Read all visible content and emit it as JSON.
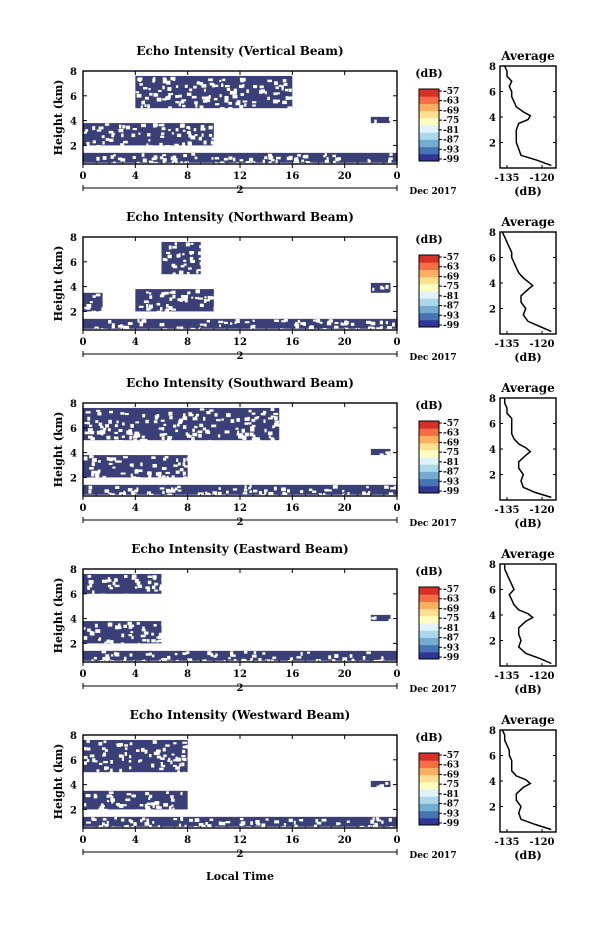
{
  "figure": {
    "x_label": "Local Time",
    "date_label": "Dec 2017",
    "units_label": "(dB)"
  },
  "colors": {
    "echo_fill": "#3a3f78",
    "colorbar": [
      "#313695",
      "#4575b4",
      "#74add1",
      "#abd9e9",
      "#e0f3f8",
      "#ffffbf",
      "#fee090",
      "#fdae61",
      "#f46d43",
      "#d73027"
    ]
  },
  "chart_data": [
    {
      "type": "heatmap",
      "title": "Echo Intensity (Vertical Beam)",
      "ylabel": "Height (km)",
      "xlim": [
        0,
        24
      ],
      "ylim": [
        0.5,
        8
      ],
      "x_ticks": [
        "0",
        "4",
        "8",
        "12",
        "16",
        "20",
        "0"
      ],
      "y_ticks": [
        "2",
        "4",
        "6",
        "8"
      ],
      "day_label": "2",
      "colorbar_ticks": [
        "-57",
        "-63",
        "-69",
        "-75",
        "-81",
        "-87",
        "-93",
        "-99"
      ],
      "echo_regions_hours_km": [
        {
          "x0": 0,
          "x1": 24,
          "y0": 0.6,
          "y1": 1.4
        },
        {
          "x0": 0,
          "x1": 10,
          "y0": 2.0,
          "y1": 3.8
        },
        {
          "x0": 4,
          "x1": 16,
          "y0": 5.0,
          "y1": 7.6
        },
        {
          "x0": 22,
          "x1": 23.5,
          "y0": 3.8,
          "y1": 4.3
        }
      ],
      "average_profile": {
        "title": "Average",
        "xlabel": "(dB)",
        "x_ticks": [
          "-135",
          "-120"
        ],
        "xlim": [
          -138,
          -114
        ],
        "ylim": [
          0,
          8
        ],
        "y_ticks": [
          "2",
          "4",
          "6",
          "8"
        ],
        "height_km": [
          0.2,
          0.6,
          1.0,
          1.5,
          2.0,
          2.5,
          3.0,
          3.5,
          3.8,
          4.1,
          4.4,
          4.8,
          5.2,
          5.6,
          6.0,
          6.4,
          6.8,
          7.2,
          7.6,
          8.0
        ],
        "value_db": [
          -116,
          -122,
          -129,
          -130,
          -131,
          -131,
          -131,
          -130,
          -126,
          -125,
          -128,
          -131,
          -132,
          -133,
          -133,
          -134,
          -133,
          -135,
          -135,
          -136
        ]
      }
    },
    {
      "type": "heatmap",
      "title": "Echo Intensity (Northward Beam)",
      "ylabel": "Height (km)",
      "xlim": [
        0,
        24
      ],
      "ylim": [
        0.5,
        8
      ],
      "x_ticks": [
        "0",
        "4",
        "8",
        "12",
        "16",
        "20",
        "0"
      ],
      "y_ticks": [
        "2",
        "4",
        "6",
        "8"
      ],
      "day_label": "2",
      "colorbar_ticks": [
        "-57",
        "-63",
        "-69",
        "-75",
        "-81",
        "-87",
        "-93",
        "-99"
      ],
      "echo_regions_hours_km": [
        {
          "x0": 0,
          "x1": 24,
          "y0": 0.6,
          "y1": 1.4
        },
        {
          "x0": 4,
          "x1": 10,
          "y0": 2.0,
          "y1": 3.8
        },
        {
          "x0": 0,
          "x1": 1.5,
          "y0": 2.0,
          "y1": 3.5
        },
        {
          "x0": 6,
          "x1": 9,
          "y0": 5.0,
          "y1": 7.6
        },
        {
          "x0": 22,
          "x1": 23.5,
          "y0": 3.5,
          "y1": 4.3
        }
      ],
      "average_profile": {
        "title": "Average",
        "xlabel": "(dB)",
        "x_ticks": [
          "-135",
          "-120"
        ],
        "xlim": [
          -138,
          -114
        ],
        "ylim": [
          0,
          8
        ],
        "y_ticks": [
          "2",
          "4",
          "6",
          "8"
        ],
        "height_km": [
          0.2,
          0.6,
          1.0,
          1.5,
          2.0,
          2.5,
          3.0,
          3.5,
          3.8,
          4.1,
          4.4,
          4.8,
          5.2,
          5.6,
          6.0,
          6.4,
          6.8,
          7.2,
          7.6,
          8.0
        ],
        "value_db": [
          -116,
          -121,
          -126,
          -128,
          -127,
          -129,
          -129,
          -126,
          -124,
          -126,
          -128,
          -130,
          -131,
          -132,
          -133,
          -133,
          -134,
          -135,
          -136,
          -137
        ]
      }
    },
    {
      "type": "heatmap",
      "title": "Echo Intensity (Southward Beam)",
      "ylabel": "Height (km)",
      "xlim": [
        0,
        24
      ],
      "ylim": [
        0.5,
        8
      ],
      "x_ticks": [
        "0",
        "4",
        "8",
        "12",
        "16",
        "20",
        "0"
      ],
      "y_ticks": [
        "2",
        "4",
        "6",
        "8"
      ],
      "day_label": "2",
      "colorbar_ticks": [
        "-57",
        "-63",
        "-69",
        "-75",
        "-81",
        "-87",
        "-93",
        "-99"
      ],
      "echo_regions_hours_km": [
        {
          "x0": 0,
          "x1": 24,
          "y0": 0.6,
          "y1": 1.4
        },
        {
          "x0": 0,
          "x1": 8,
          "y0": 2.0,
          "y1": 3.8
        },
        {
          "x0": 0,
          "x1": 15,
          "y0": 5.0,
          "y1": 7.6
        },
        {
          "x0": 22,
          "x1": 23.5,
          "y0": 3.8,
          "y1": 4.3
        }
      ],
      "average_profile": {
        "title": "Average",
        "xlabel": "(dB)",
        "x_ticks": [
          "-135",
          "-120"
        ],
        "xlim": [
          -138,
          -114
        ],
        "ylim": [
          0,
          8
        ],
        "y_ticks": [
          "2",
          "4",
          "6",
          "8"
        ],
        "height_km": [
          0.2,
          0.6,
          1.0,
          1.5,
          2.0,
          2.5,
          3.0,
          3.5,
          3.8,
          4.1,
          4.4,
          4.8,
          5.2,
          5.6,
          6.0,
          6.4,
          6.8,
          7.2,
          7.6,
          8.0
        ],
        "value_db": [
          -116,
          -123,
          -128,
          -129,
          -128,
          -130,
          -130,
          -127,
          -125,
          -127,
          -130,
          -132,
          -133,
          -133,
          -133,
          -133,
          -135,
          -135,
          -136,
          -136
        ]
      }
    },
    {
      "type": "heatmap",
      "title": "Echo Intensity (Eastward Beam)",
      "ylabel": "Height (km)",
      "xlim": [
        0,
        24
      ],
      "ylim": [
        0.5,
        8
      ],
      "x_ticks": [
        "0",
        "4",
        "8",
        "12",
        "16",
        "20",
        "0"
      ],
      "y_ticks": [
        "2",
        "4",
        "6",
        "8"
      ],
      "day_label": "2",
      "colorbar_ticks": [
        "-57",
        "-63",
        "-69",
        "-75",
        "-81",
        "-87",
        "-93",
        "-99"
      ],
      "echo_regions_hours_km": [
        {
          "x0": 0,
          "x1": 24,
          "y0": 0.6,
          "y1": 1.4
        },
        {
          "x0": 0,
          "x1": 6,
          "y0": 2.0,
          "y1": 3.8
        },
        {
          "x0": 0,
          "x1": 6,
          "y0": 6.0,
          "y1": 7.6
        },
        {
          "x0": 22,
          "x1": 23.5,
          "y0": 3.8,
          "y1": 4.3
        }
      ],
      "average_profile": {
        "title": "Average",
        "xlabel": "(dB)",
        "x_ticks": [
          "-135",
          "-120"
        ],
        "xlim": [
          -138,
          -114
        ],
        "ylim": [
          0,
          8
        ],
        "y_ticks": [
          "2",
          "4",
          "6",
          "8"
        ],
        "height_km": [
          0.2,
          0.6,
          1.0,
          1.5,
          2.0,
          2.5,
          3.0,
          3.5,
          3.8,
          4.1,
          4.4,
          4.8,
          5.2,
          5.6,
          6.0,
          6.4,
          6.8,
          7.2,
          7.6,
          8.0
        ],
        "value_db": [
          -116,
          -121,
          -127,
          -130,
          -129,
          -130,
          -130,
          -127,
          -124,
          -126,
          -130,
          -132,
          -133,
          -134,
          -132,
          -133,
          -134,
          -135,
          -136,
          -136
        ]
      }
    },
    {
      "type": "heatmap",
      "title": "Echo Intensity (Westward Beam)",
      "ylabel": "Height (km)",
      "xlim": [
        0,
        24
      ],
      "ylim": [
        0.5,
        8
      ],
      "x_ticks": [
        "0",
        "4",
        "8",
        "12",
        "16",
        "20",
        "0"
      ],
      "y_ticks": [
        "2",
        "4",
        "6",
        "8"
      ],
      "day_label": "2",
      "colorbar_ticks": [
        "-57",
        "-63",
        "-69",
        "-75",
        "-81",
        "-87",
        "-93",
        "-99"
      ],
      "echo_regions_hours_km": [
        {
          "x0": 0,
          "x1": 24,
          "y0": 0.6,
          "y1": 1.4
        },
        {
          "x0": 0,
          "x1": 8,
          "y0": 2.0,
          "y1": 3.5
        },
        {
          "x0": 0,
          "x1": 8,
          "y0": 5.0,
          "y1": 7.6
        },
        {
          "x0": 22,
          "x1": 23.5,
          "y0": 3.8,
          "y1": 4.3
        }
      ],
      "average_profile": {
        "title": "Average",
        "xlabel": "(dB)",
        "x_ticks": [
          "-135",
          "-120"
        ],
        "xlim": [
          -138,
          -114
        ],
        "ylim": [
          0,
          8
        ],
        "y_ticks": [
          "2",
          "4",
          "6",
          "8"
        ],
        "height_km": [
          0.2,
          0.6,
          1.0,
          1.5,
          2.0,
          2.5,
          3.0,
          3.5,
          3.8,
          4.1,
          4.4,
          4.8,
          5.2,
          5.6,
          6.0,
          6.4,
          6.8,
          7.2,
          7.6,
          8.0
        ],
        "value_db": [
          -116,
          -123,
          -129,
          -130,
          -129,
          -131,
          -131,
          -128,
          -125,
          -127,
          -131,
          -133,
          -133,
          -133,
          -134,
          -134,
          -135,
          -136,
          -136,
          -137
        ]
      }
    }
  ]
}
